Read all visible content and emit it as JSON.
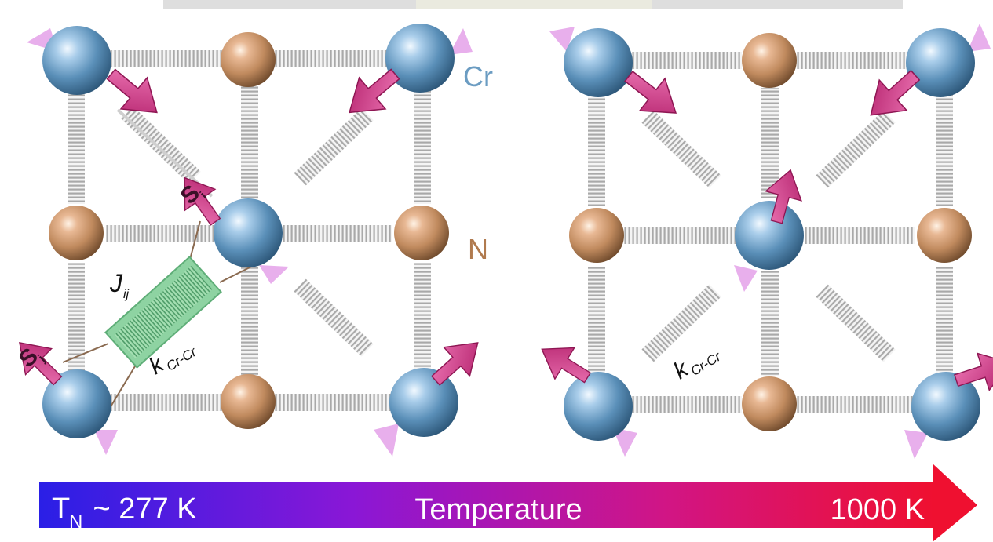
{
  "labels": {
    "cr": "Cr",
    "n": "N",
    "coupling_j": "J",
    "coupling_j_sub": "ij",
    "spin_symbol": "S",
    "spring_left": "k",
    "spring_left_sub": "Cr-Cr",
    "spring_right": "k",
    "spring_right_sub": "Cr-Cr"
  },
  "temperature_bar": {
    "low_main": "T",
    "low_sub": "N",
    "low_rest": " ~ 277 K",
    "center": "Temperature",
    "high": "1000 K",
    "gradient_colors": [
      "#2a1fe6",
      "#8a17d6",
      "#d11585",
      "#ef1030"
    ]
  },
  "colors": {
    "cr_atom": "#5a8fb8",
    "n_atom": "#c08a5e",
    "spin_arrow": "#d2388a",
    "spin_arrow_light": "#e6a6ea",
    "spring": "#b0b0b0",
    "coupling_box": "#8ed3a2"
  }
}
